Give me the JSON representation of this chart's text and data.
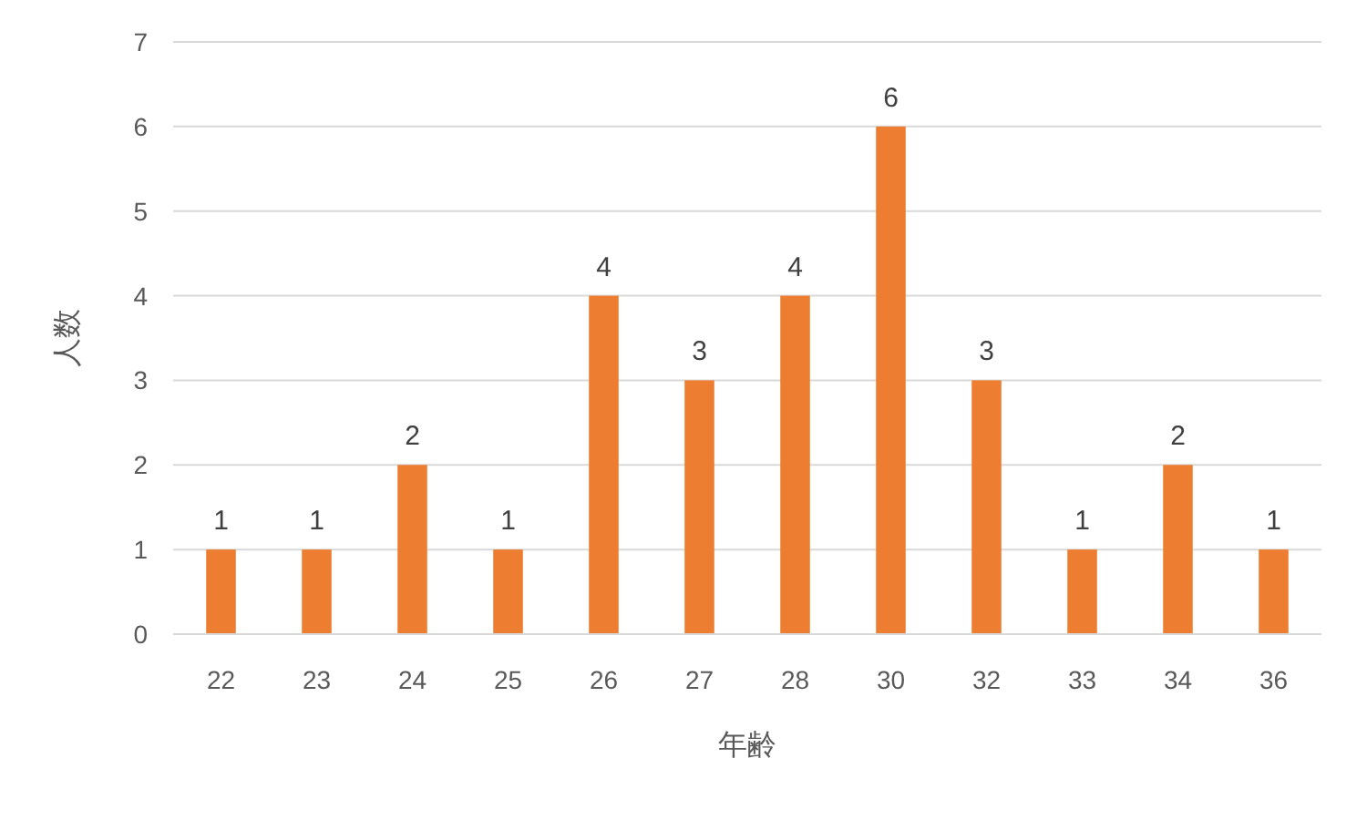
{
  "chart_data": {
    "type": "bar",
    "xlabel": "年齢",
    "ylabel": "人数",
    "categories": [
      "22",
      "23",
      "24",
      "25",
      "26",
      "27",
      "28",
      "30",
      "32",
      "33",
      "34",
      "36"
    ],
    "values": [
      1,
      1,
      2,
      1,
      4,
      3,
      4,
      6,
      3,
      1,
      2,
      1
    ],
    "color": "#ed7d31",
    "ylim": [
      0,
      7
    ],
    "yticks": [
      0,
      1,
      2,
      3,
      4,
      5,
      6,
      7
    ],
    "grid": "y",
    "data_labels": true
  }
}
